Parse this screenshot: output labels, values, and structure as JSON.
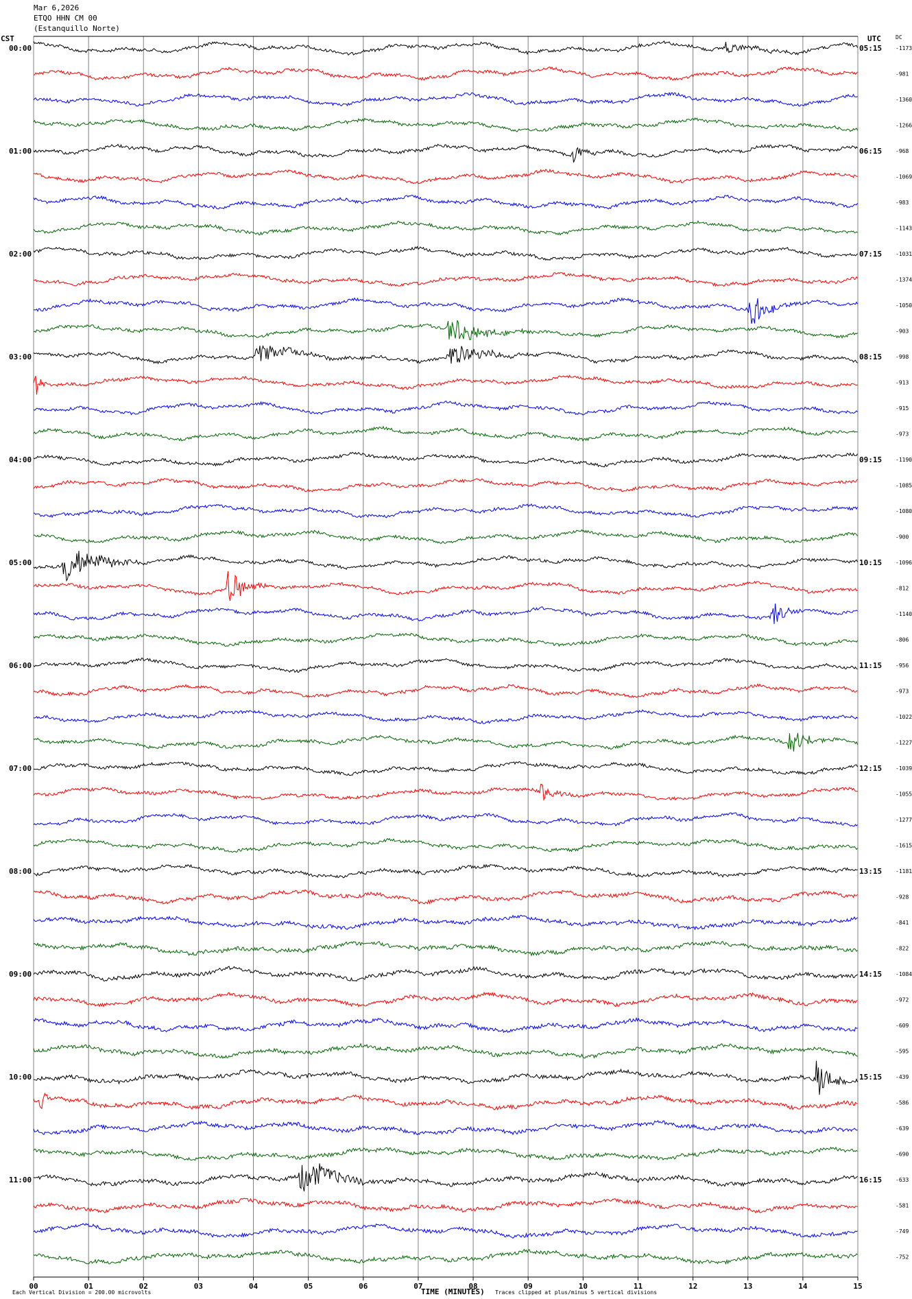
{
  "header": {
    "date": "Mar 6,2026",
    "channel": "ETQO HHN CM 00",
    "station": "(Estanquillo Norte)"
  },
  "left_axis_label": "CST",
  "right_axis_label": "UTC",
  "dc_label": "DC",
  "footer": {
    "scale_note": "Each Vertical Division =  200.00 microvolts",
    "xlabel": "TIME (MINUTES)",
    "clip_note": "Traces clipped at plus/minus 5 vertical divisions"
  },
  "colors": {
    "trace_cycle": [
      "#000000",
      "#ff0000",
      "#0000ff",
      "#006400"
    ],
    "grid": "#808080"
  },
  "chart_data": {
    "type": "line",
    "subtype": "helicorder",
    "minutes_per_line": 15,
    "line_count": 48,
    "xlim": [
      0,
      15
    ],
    "x_ticks": [
      "00",
      "01",
      "02",
      "03",
      "04",
      "05",
      "06",
      "07",
      "08",
      "09",
      "10",
      "11",
      "12",
      "13",
      "14",
      "15"
    ],
    "hour_labels_cst": [
      "00:00",
      "01:00",
      "02:00",
      "03:00",
      "04:00",
      "05:00",
      "06:00",
      "07:00",
      "08:00",
      "09:00",
      "10:00",
      "11:00"
    ],
    "hour_labels_utc": [
      "05:15",
      "06:15",
      "07:15",
      "08:15",
      "09:15",
      "10:15",
      "11:15",
      "12:15",
      "13:15",
      "14:15",
      "15:15",
      "16:15"
    ],
    "dc_offsets": [
      -1173,
      -981,
      -1360,
      -1266,
      -968,
      -1069,
      -983,
      -1143,
      -1031,
      -1374,
      -1050,
      -903,
      -998,
      -913,
      -915,
      -973,
      -1190,
      -1085,
      -1080,
      -900,
      -1096,
      -812,
      -1140,
      -806,
      -956,
      -973,
      -1022,
      -1227,
      -1039,
      -1055,
      -1277,
      -1615,
      -1181,
      -928,
      -841,
      -822,
      -1084,
      -972,
      -609,
      -595,
      -439,
      -586,
      -639,
      -690,
      -633,
      -581,
      -749,
      -752
    ],
    "events": [
      {
        "line": 0,
        "start_min": 12.5,
        "end_min": 14.2,
        "amp": 0.25
      },
      {
        "line": 4,
        "start_min": 9.8,
        "end_min": 10.3,
        "amp": 0.45
      },
      {
        "line": 10,
        "start_min": 13.0,
        "end_min": 14.0,
        "amp": 0.8
      },
      {
        "line": 11,
        "start_min": 7.5,
        "end_min": 9.0,
        "amp": 0.7
      },
      {
        "line": 12,
        "start_min": 4.0,
        "end_min": 5.5,
        "amp": 0.5
      },
      {
        "line": 12,
        "start_min": 7.5,
        "end_min": 9.0,
        "amp": 0.6
      },
      {
        "line": 13,
        "start_min": 0.0,
        "end_min": 0.2,
        "amp": 1.2
      },
      {
        "line": 20,
        "start_min": 0.5,
        "end_min": 2.0,
        "amp": 0.9
      },
      {
        "line": 21,
        "start_min": 3.5,
        "end_min": 4.3,
        "amp": 0.9
      },
      {
        "line": 22,
        "start_min": 13.4,
        "end_min": 14.0,
        "amp": 0.7
      },
      {
        "line": 27,
        "start_min": 13.7,
        "end_min": 14.6,
        "amp": 0.7
      },
      {
        "line": 29,
        "start_min": 9.2,
        "end_min": 9.8,
        "amp": 0.5
      },
      {
        "line": 40,
        "start_min": 14.2,
        "end_min": 14.9,
        "amp": 1.0
      },
      {
        "line": 41,
        "start_min": 0.1,
        "end_min": 0.5,
        "amp": 0.8
      },
      {
        "line": 44,
        "start_min": 4.8,
        "end_min": 6.4,
        "amp": 0.8
      }
    ]
  }
}
